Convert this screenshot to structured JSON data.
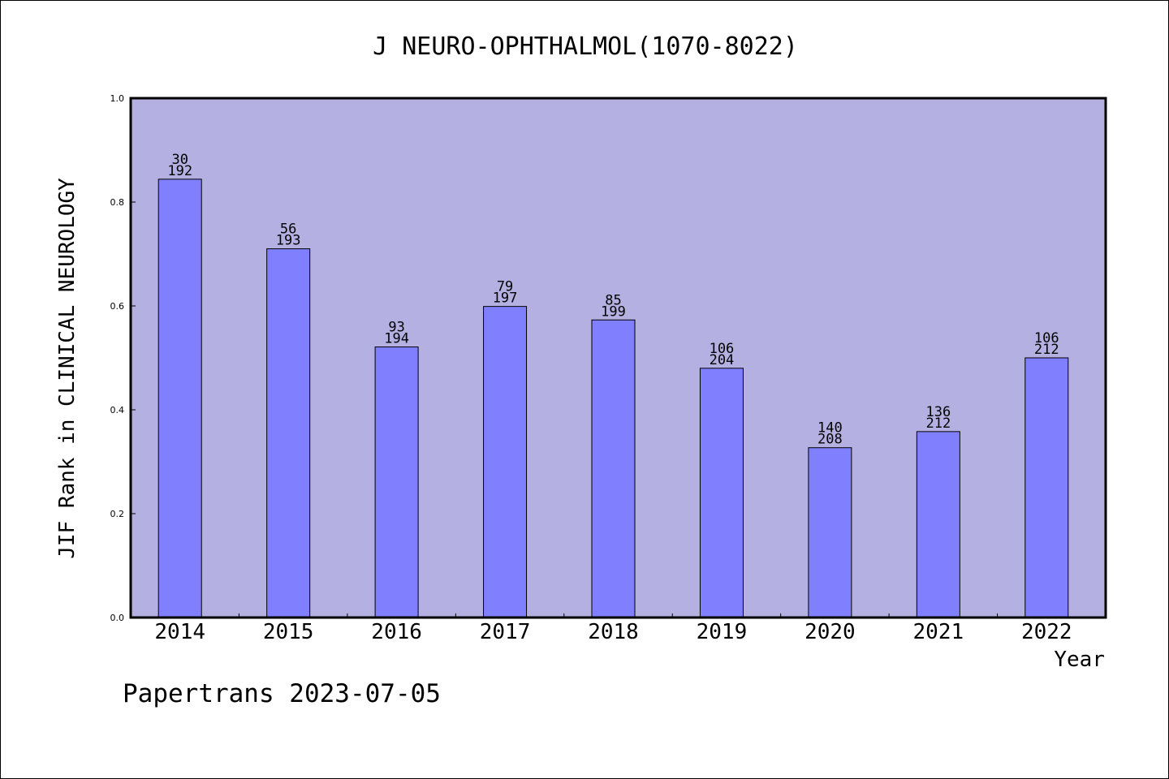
{
  "chart_data": {
    "type": "bar",
    "title": "J NEURO-OPHTHALMOL(1070-8022)",
    "xlabel": "Year",
    "ylabel": "JIF Rank in CLINICAL NEUROLOGY",
    "ylim": [
      0,
      1.0
    ],
    "yticks": [
      "0.0",
      "0.2",
      "0.4",
      "0.6",
      "0.8",
      "1.0"
    ],
    "categories": [
      "2014",
      "2015",
      "2016",
      "2017",
      "2018",
      "2019",
      "2020",
      "2021",
      "2022"
    ],
    "values": [
      0.844,
      0.71,
      0.521,
      0.599,
      0.573,
      0.48,
      0.327,
      0.358,
      0.5
    ],
    "rank": [
      "30",
      "56",
      "93",
      "79",
      "85",
      "106",
      "140",
      "136",
      "106"
    ],
    "total": [
      "192",
      "193",
      "194",
      "197",
      "199",
      "204",
      "208",
      "212",
      "212"
    ],
    "grid": false,
    "colors": {
      "plot_background": "#b5b0e2",
      "bar_fill": "#8080ff",
      "bar_stroke": "#000000"
    }
  },
  "footer": {
    "note": "Papertrans 2023-07-05"
  }
}
